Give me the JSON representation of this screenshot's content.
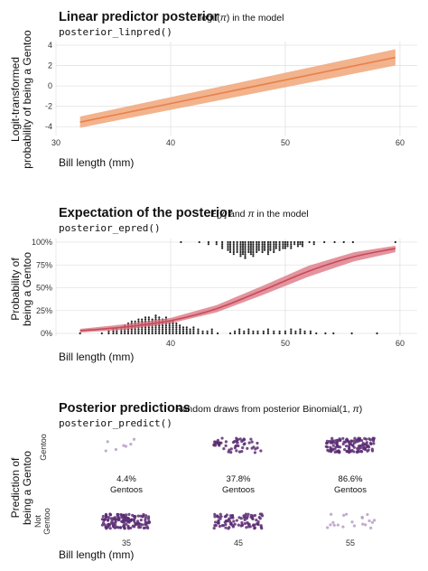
{
  "chart_data": [
    {
      "type": "line",
      "title": "Linear predictor posterior",
      "subtitle_text": "logit(",
      "subtitle_symbol": "π",
      "subtitle_end": ") in the model",
      "code": "posterior_linpred()",
      "xlabel": "Bill length (mm)",
      "ylabel_line1": "Logit-transformed",
      "ylabel_line2": "probability of being a Gentoo",
      "xlim": [
        30,
        61.5
      ],
      "ylim": [
        -4.6,
        4
      ],
      "xticks": [
        30,
        40,
        50,
        60
      ],
      "yticks": [
        -4,
        -2,
        0,
        2,
        4
      ],
      "ytick_labels": [
        "-4",
        "-2",
        "0",
        "2",
        "4"
      ],
      "series": [
        {
          "x": [
            32.1,
            59.6
          ],
          "y": [
            -3.55,
            2.8
          ],
          "lower": [
            -4.1,
            2.0
          ],
          "upper": [
            -3.0,
            3.6
          ],
          "color": "#e8814a",
          "band_color": "#f0a679"
        }
      ],
      "grid": true
    },
    {
      "type": "line",
      "title": "Expectation of the posterior",
      "subtitle_a": "E[",
      "subtitle_y": "y",
      "subtitle_b": "] and ",
      "subtitle_pi": "π",
      "subtitle_c": " in the model",
      "code": "posterior_epred()",
      "xlabel": "Bill length (mm)",
      "ylabel_line1": "Probability of",
      "ylabel_line2": "being a Gentoo",
      "xlim": [
        30,
        61.5
      ],
      "ylim": [
        0,
        1
      ],
      "xticks": [
        30,
        40,
        50,
        60
      ],
      "xtick_labels": [
        "",
        "40",
        "50",
        "60"
      ],
      "yticks": [
        0,
        0.25,
        0.5,
        0.75,
        1
      ],
      "ytick_labels": [
        "0%",
        "25%",
        "50%",
        "75%",
        "100%"
      ],
      "series": [
        {
          "x": [
            32.1,
            36,
            40,
            44,
            48,
            52,
            56,
            59.6
          ],
          "y": [
            0.03,
            0.07,
            0.14,
            0.27,
            0.47,
            0.68,
            0.84,
            0.93
          ],
          "lower": [
            0.01,
            0.04,
            0.11,
            0.23,
            0.42,
            0.62,
            0.79,
            0.89
          ],
          "upper": [
            0.05,
            0.1,
            0.17,
            0.31,
            0.52,
            0.74,
            0.89,
            0.96
          ],
          "color": "#c84a5a",
          "band_color": "#d9707e"
        }
      ],
      "points_gentoo_x": [
        40.9,
        42.5,
        43.3,
        44.0,
        44.5,
        45.0,
        45.2,
        45.5,
        45.8,
        46.1,
        46.3,
        46.5,
        46.8,
        47.0,
        47.2,
        47.5,
        47.7,
        48.0,
        48.2,
        48.5,
        48.7,
        49.0,
        49.2,
        49.5,
        49.8,
        50.0,
        50.2,
        50.5,
        50.8,
        51.1,
        51.3,
        51.5,
        52.1,
        52.5,
        53.4,
        54.3,
        55.1,
        55.9,
        59.6
      ],
      "points_gentoo_counts": [
        1,
        1,
        2,
        2,
        4,
        5,
        6,
        7,
        6,
        8,
        7,
        9,
        6,
        7,
        8,
        6,
        5,
        6,
        5,
        7,
        5,
        6,
        4,
        5,
        4,
        4,
        3,
        4,
        2,
        3,
        2,
        3,
        1,
        2,
        1,
        1,
        1,
        1,
        1
      ],
      "points_other_x": [
        32.1,
        34.0,
        34.6,
        35.0,
        35.3,
        35.7,
        36.0,
        36.3,
        36.6,
        36.9,
        37.2,
        37.5,
        37.8,
        38.1,
        38.4,
        38.7,
        39.0,
        39.3,
        39.6,
        39.9,
        40.2,
        40.5,
        40.8,
        41.1,
        41.4,
        41.7,
        42.0,
        42.4,
        42.8,
        43.2,
        43.6,
        44.1,
        45.2,
        45.6,
        46.0,
        46.4,
        46.8,
        47.2,
        47.6,
        48.1,
        48.5,
        49.0,
        49.5,
        50.0,
        50.5,
        50.9,
        51.3,
        51.7,
        52.2,
        52.7,
        53.5,
        54.2,
        55.8,
        58.0
      ],
      "points_other_counts": [
        1,
        1,
        2,
        3,
        3,
        4,
        5,
        6,
        7,
        7,
        8,
        8,
        9,
        9,
        8,
        10,
        9,
        8,
        9,
        7,
        7,
        6,
        5,
        4,
        4,
        3,
        4,
        3,
        2,
        2,
        3,
        1,
        1,
        2,
        3,
        2,
        3,
        2,
        2,
        2,
        3,
        2,
        2,
        2,
        3,
        2,
        3,
        2,
        2,
        1,
        1,
        1,
        1,
        1
      ],
      "grid": true
    },
    {
      "type": "scatter",
      "title": "Posterior predictions",
      "subtitle_a": "Random draws from posterior Binomial(1, ",
      "subtitle_pi": "π",
      "subtitle_c": ")",
      "code": "posterior_predict()",
      "xlabel": "Bill length (mm)",
      "ylabel_line1": "Prediction of",
      "ylabel_line2": "being a Gentoo",
      "row_labels": [
        "Gentoo",
        "Not",
        "Gentoo"
      ],
      "categories": [
        "35",
        "45",
        "55"
      ],
      "gentoo_percent": [
        "4.4%",
        "37.8%",
        "86.6%"
      ],
      "gentoo_word": "Gentoos",
      "gentoo_share": [
        0.044,
        0.378,
        0.866
      ],
      "colors": {
        "point": "#5a2c73",
        "point_light": "#b79cc7"
      }
    }
  ]
}
